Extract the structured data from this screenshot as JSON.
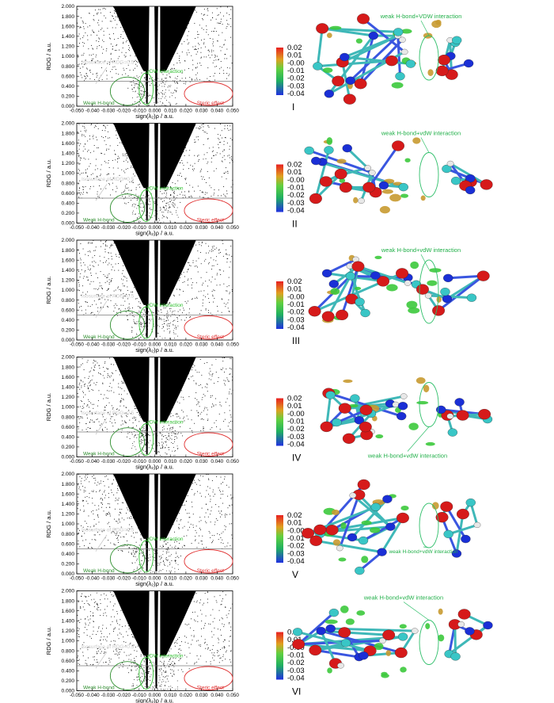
{
  "figure": {
    "panel_count": 6
  },
  "common_plot": {
    "ylabel": "RDG / a.u.",
    "xlabel": "sign(λ₂)ρ / a.u.",
    "x_ticks": [
      "-0.050",
      "-0.040",
      "-0.030",
      "-0.020",
      "-0.010",
      "0.000",
      "0.010",
      "0.020",
      "0.030",
      "0.040",
      "0.050"
    ],
    "y_ticks": [
      "0.000",
      "0.200",
      "0.400",
      "0.600",
      "0.800",
      "1.000",
      "1.200",
      "1.400",
      "1.600",
      "1.800",
      "2.000"
    ],
    "isosurface_label": "Isosurface of RDG=0.5",
    "weak_hbond_label": "Weak H-bond",
    "vdw_label": "vDW interaction",
    "steric_label": "Steric effect",
    "colorbar_ticks": [
      "0.02",
      "0.01",
      "-0.00",
      "-0.01",
      "-0.02",
      "-0.03",
      "-0.04"
    ]
  },
  "panels": [
    {
      "roman": "I",
      "mol_label": "weak H-bond+VDW interaction"
    },
    {
      "roman": "II",
      "mol_label": "weak H-bond+vdW interaction"
    },
    {
      "roman": "III",
      "mol_label": "weak H-bond+vdW interaction"
    },
    {
      "roman": "IV",
      "mol_label": "weak H-bond+vdW interaction"
    },
    {
      "roman": "V",
      "mol_label": "weak H-bond+vdW interaction"
    },
    {
      "roman": "VI",
      "mol_label": "weak H-bond+vdW interaction"
    }
  ],
  "chart_data": {
    "type": "scatter",
    "xlim": [
      -0.05,
      0.05
    ],
    "ylim": [
      0,
      2.0
    ],
    "threshold_line_y": 0.5,
    "spike_positions_x": [
      -0.005,
      0.001
    ],
    "colors": {
      "points": "#000000",
      "threshold": "#7a7a7a",
      "weak_hbond": "#2f8f2f",
      "vdw": "#2fc02f",
      "steric": "#e03030",
      "isosurface": "#c8c8c8",
      "mol_label": "#22b04a",
      "atom_red": "#d61a1a",
      "atom_blue": "#1a2fd6",
      "atom_cyan": "#39c6c6",
      "atom_white": "#e8e8e8"
    }
  }
}
